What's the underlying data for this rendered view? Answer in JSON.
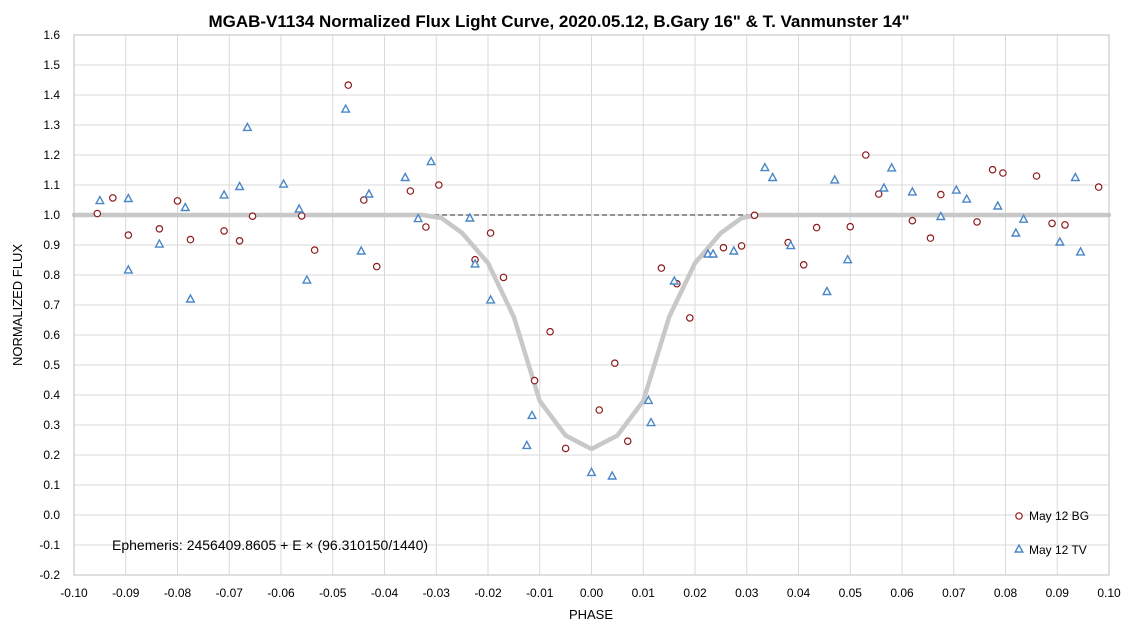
{
  "chart_data": {
    "type": "scatter",
    "title": "MGAB-V1134 Normalized Flux Light Curve, 2020.05.12, B.Gary 16\" & T. Vanmunster 14\"",
    "xlabel": "PHASE",
    "ylabel": "NORMALIZED FLUX",
    "xlim": [
      -0.1,
      0.1
    ],
    "ylim": [
      -0.2,
      1.6
    ],
    "x_ticks": [
      -0.1,
      -0.09,
      -0.08,
      -0.07,
      -0.06,
      -0.05,
      -0.04,
      -0.03,
      -0.02,
      -0.01,
      0.0,
      0.01,
      0.02,
      0.03,
      0.04,
      0.05,
      0.06,
      0.07,
      0.08,
      0.09,
      0.1
    ],
    "x_tick_labels": [
      "-0.10",
      "-0.09",
      "-0.08",
      "-0.07",
      "-0.06",
      "-0.05",
      "-0.04",
      "-0.03",
      "-0.02",
      "-0.01",
      "0.00",
      "0.01",
      "0.02",
      "0.03",
      "0.04",
      "0.05",
      "0.06",
      "0.07",
      "0.08",
      "0.09",
      "0.10"
    ],
    "y_ticks": [
      -0.2,
      -0.1,
      0.0,
      0.1,
      0.2,
      0.3,
      0.4,
      0.5,
      0.6,
      0.7,
      0.8,
      0.9,
      1.0,
      1.1,
      1.2,
      1.3,
      1.4,
      1.5,
      1.6
    ],
    "y_tick_labels": [
      "-0.2",
      "-0.1",
      "0.0",
      "0.1",
      "0.2",
      "0.3",
      "0.4",
      "0.5",
      "0.6",
      "0.7",
      "0.8",
      "0.9",
      "1.0",
      "1.1",
      "1.2",
      "1.3",
      "1.4",
      "1.5",
      "1.6"
    ],
    "grid": true,
    "legend_position": "bottom-right",
    "annotation": "Ephemeris: 2456409.8605 + E × (96.310150/1440)",
    "reference_lines": [
      {
        "y": 1.0,
        "style": "dashed",
        "color": "#555555"
      }
    ],
    "model_curve": {
      "color": "#c8c8c8",
      "points": [
        [
          -0.1,
          1.0
        ],
        [
          -0.0325,
          1.0
        ],
        [
          -0.029,
          0.99
        ],
        [
          -0.025,
          0.94
        ],
        [
          -0.02,
          0.84
        ],
        [
          -0.015,
          0.66
        ],
        [
          -0.01,
          0.38
        ],
        [
          -0.005,
          0.265
        ],
        [
          0.0,
          0.22
        ],
        [
          0.005,
          0.265
        ],
        [
          0.01,
          0.38
        ],
        [
          0.015,
          0.66
        ],
        [
          0.02,
          0.84
        ],
        [
          0.025,
          0.94
        ],
        [
          0.029,
          0.99
        ],
        [
          0.0325,
          1.0
        ],
        [
          0.1,
          1.0
        ]
      ]
    },
    "series": [
      {
        "name": "May 12 BG",
        "marker": "circle",
        "color": "#8b1a1a",
        "points": [
          [
            -0.0955,
            1.005
          ],
          [
            -0.0925,
            1.057
          ],
          [
            -0.0895,
            0.933
          ],
          [
            -0.0835,
            0.954
          ],
          [
            -0.08,
            1.047
          ],
          [
            -0.0775,
            0.918
          ],
          [
            -0.071,
            0.947
          ],
          [
            -0.068,
            0.914
          ],
          [
            -0.0655,
            0.996
          ],
          [
            -0.056,
            0.997
          ],
          [
            -0.0535,
            0.883
          ],
          [
            -0.047,
            1.433
          ],
          [
            -0.044,
            1.05
          ],
          [
            -0.0415,
            0.828
          ],
          [
            -0.035,
            1.08
          ],
          [
            -0.032,
            0.96
          ],
          [
            -0.0295,
            1.1
          ],
          [
            -0.0225,
            0.851
          ],
          [
            -0.0195,
            0.94
          ],
          [
            -0.017,
            0.792
          ],
          [
            -0.011,
            0.448
          ],
          [
            -0.008,
            0.611
          ],
          [
            -0.005,
            0.222
          ],
          [
            0.0015,
            0.35
          ],
          [
            0.0045,
            0.506
          ],
          [
            0.007,
            0.246
          ],
          [
            0.0135,
            0.823
          ],
          [
            0.0165,
            0.771
          ],
          [
            0.019,
            0.657
          ],
          [
            0.0255,
            0.891
          ],
          [
            0.029,
            0.897
          ],
          [
            0.0315,
            0.999
          ],
          [
            0.038,
            0.908
          ],
          [
            0.041,
            0.834
          ],
          [
            0.0435,
            0.958
          ],
          [
            0.05,
            0.961
          ],
          [
            0.053,
            1.2
          ],
          [
            0.0555,
            1.07
          ],
          [
            0.062,
            0.981
          ],
          [
            0.0655,
            0.923
          ],
          [
            0.0675,
            1.068
          ],
          [
            0.0745,
            0.977
          ],
          [
            0.0775,
            1.151
          ],
          [
            0.0795,
            1.14
          ],
          [
            0.086,
            1.13
          ],
          [
            0.089,
            0.972
          ],
          [
            0.0915,
            0.967
          ],
          [
            0.098,
            1.093
          ]
        ]
      },
      {
        "name": "May 12 TV",
        "marker": "triangle",
        "color": "#4a86c8",
        "points": [
          [
            -0.095,
            1.048
          ],
          [
            -0.0895,
            0.817
          ],
          [
            -0.0895,
            1.055
          ],
          [
            -0.0835,
            0.903
          ],
          [
            -0.0785,
            1.025
          ],
          [
            -0.0775,
            0.72
          ],
          [
            -0.071,
            1.067
          ],
          [
            -0.068,
            1.095
          ],
          [
            -0.0665,
            1.292
          ],
          [
            -0.0595,
            1.103
          ],
          [
            -0.0565,
            1.02
          ],
          [
            -0.055,
            0.783
          ],
          [
            -0.0475,
            1.353
          ],
          [
            -0.0445,
            0.88
          ],
          [
            -0.043,
            1.07
          ],
          [
            -0.036,
            1.125
          ],
          [
            -0.0335,
            0.988
          ],
          [
            -0.031,
            1.178
          ],
          [
            -0.0235,
            0.99
          ],
          [
            -0.0225,
            0.837
          ],
          [
            -0.0195,
            0.717
          ],
          [
            -0.0125,
            0.232
          ],
          [
            -0.0115,
            0.332
          ],
          [
            0.0,
            0.142
          ],
          [
            0.004,
            0.13
          ],
          [
            0.011,
            0.382
          ],
          [
            0.0115,
            0.308
          ],
          [
            0.016,
            0.78
          ],
          [
            0.0225,
            0.87
          ],
          [
            0.0235,
            0.87
          ],
          [
            0.0275,
            0.88
          ],
          [
            0.0335,
            1.158
          ],
          [
            0.035,
            1.125
          ],
          [
            0.0385,
            0.898
          ],
          [
            0.0455,
            0.745
          ],
          [
            0.047,
            1.117
          ],
          [
            0.0495,
            0.851
          ],
          [
            0.0565,
            1.09
          ],
          [
            0.058,
            1.157
          ],
          [
            0.062,
            1.077
          ],
          [
            0.0675,
            0.995
          ],
          [
            0.0705,
            1.083
          ],
          [
            0.0725,
            1.053
          ],
          [
            0.0785,
            1.03
          ],
          [
            0.082,
            0.94
          ],
          [
            0.0835,
            0.986
          ],
          [
            0.0905,
            0.91
          ],
          [
            0.0935,
            1.125
          ],
          [
            0.0945,
            0.877
          ]
        ]
      }
    ]
  }
}
